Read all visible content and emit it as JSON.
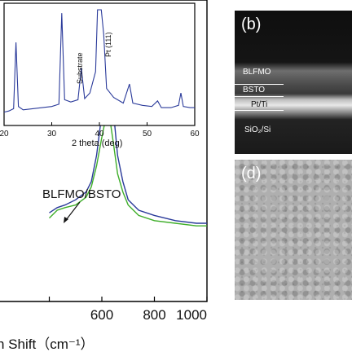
{
  "chart_data": [
    {
      "type": "line",
      "role": "inset",
      "xlabel": "2 theta (deg)",
      "xlim": [
        20,
        60
      ],
      "x_ticks": [
        20,
        30,
        40,
        50,
        60
      ],
      "annotations": [
        "Substrate",
        "Pt (111)"
      ],
      "series": [
        {
          "color": "#2a3a9a",
          "x": [
            20,
            21,
            22,
            22.5,
            23,
            24,
            26,
            28,
            30,
            31.5,
            32.1,
            32.7,
            34,
            35.5,
            36.2,
            36.9,
            38,
            39.2,
            39.6,
            40.0,
            40.4,
            40.9,
            41.5,
            43,
            45,
            46.3,
            47,
            49,
            51,
            52.2,
            53,
            55,
            56.6,
            57.1,
            57.6,
            59,
            60
          ],
          "y": [
            0.09,
            0.1,
            0.12,
            0.71,
            0.14,
            0.11,
            0.12,
            0.13,
            0.14,
            0.16,
            0.97,
            0.2,
            0.18,
            0.2,
            0.48,
            0.21,
            0.26,
            0.45,
            1.0,
            1.0,
            1.0,
            0.78,
            0.3,
            0.22,
            0.17,
            0.34,
            0.17,
            0.15,
            0.14,
            0.19,
            0.13,
            0.13,
            0.15,
            0.26,
            0.14,
            0.13,
            0.13
          ]
        }
      ]
    },
    {
      "type": "line",
      "role": "main",
      "xlabel": "n Shift（cm⁻¹）",
      "xlim": [
        400,
        1000
      ],
      "x_ticks": [
        400,
        600,
        800,
        1000
      ],
      "x_tick_labels": [
        "",
        "600",
        "800",
        "1000"
      ],
      "annotations": [
        "BLFMO/BSTO"
      ],
      "series": [
        {
          "color": "#2a3a9a",
          "x": [
            400,
            430,
            460,
            500,
            540,
            560,
            580,
            600,
            612,
            622,
            632,
            645,
            660,
            680,
            700,
            740,
            800,
            880,
            960,
            1000
          ],
          "y": [
            0.34,
            0.36,
            0.37,
            0.39,
            0.42,
            0.46,
            0.56,
            0.72,
            0.83,
            0.87,
            0.84,
            0.72,
            0.56,
            0.46,
            0.39,
            0.35,
            0.33,
            0.31,
            0.3,
            0.3
          ]
        },
        {
          "color": "#3fae2a",
          "x": [
            400,
            430,
            460,
            500,
            540,
            560,
            580,
            600,
            612,
            622,
            632,
            645,
            660,
            680,
            700,
            740,
            800,
            880,
            960,
            1000
          ],
          "y": [
            0.32,
            0.35,
            0.36,
            0.37,
            0.4,
            0.44,
            0.52,
            0.63,
            0.69,
            0.71,
            0.69,
            0.6,
            0.49,
            0.42,
            0.37,
            0.33,
            0.31,
            0.3,
            0.29,
            0.29
          ]
        }
      ]
    }
  ],
  "panel_b": {
    "label": "(b)",
    "layers": [
      "BLFMO",
      "BSTO",
      "Pt/Ti",
      "SiO₂/Si"
    ]
  },
  "panel_d": {
    "label": "(d)"
  },
  "colors": {
    "blue": "#2a3a9a",
    "green": "#3fae2a",
    "sem_dark": "#141414",
    "sem_gray": "#a4a4a4"
  }
}
